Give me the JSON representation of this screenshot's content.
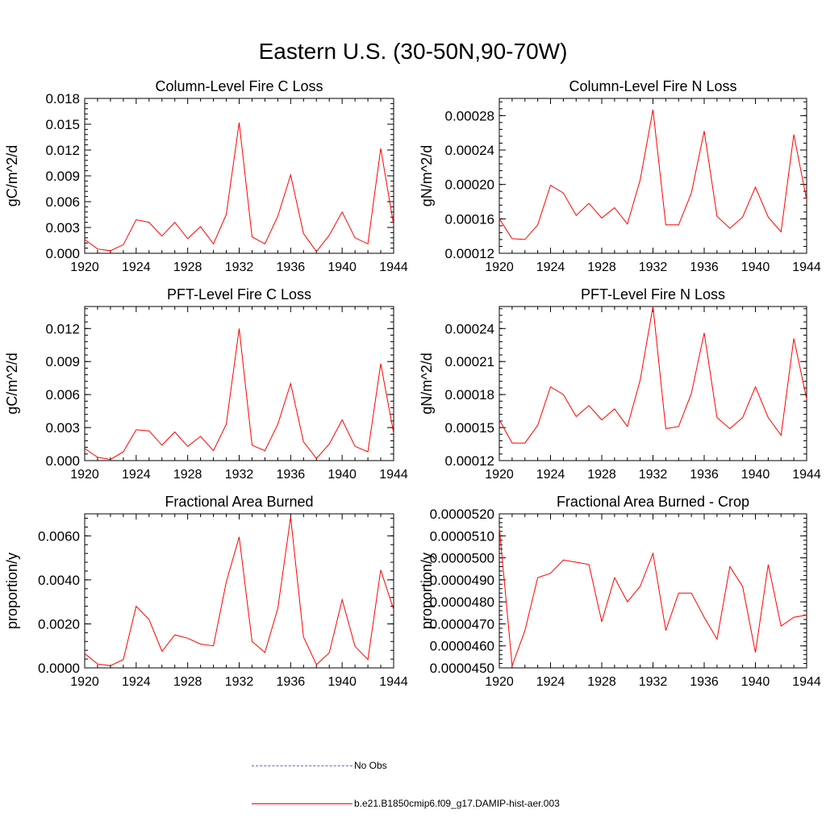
{
  "page_title": "Eastern U.S. (30-50N,90-70W)",
  "chart_data": [
    {
      "type": "line",
      "title": "Column-Level Fire C Loss",
      "ylabel": "gC/m^2/d",
      "xlim": [
        1920,
        1944
      ],
      "ylim": [
        0,
        0.018
      ],
      "xticks": [
        "1920",
        "1924",
        "1928",
        "1932",
        "1936",
        "1940",
        "1944"
      ],
      "yticks": [
        "0.000",
        "0.003",
        "0.006",
        "0.009",
        "0.012",
        "0.015",
        "0.018"
      ],
      "series": [
        {
          "name": "b.e21.B1850cmip6.f09_g17.DAMIP-hist-aer.003",
          "color": "#ff0000",
          "x": [
            1920,
            1921,
            1922,
            1923,
            1924,
            1925,
            1926,
            1927,
            1928,
            1929,
            1930,
            1931,
            1932,
            1933,
            1934,
            1935,
            1936,
            1937,
            1938,
            1939,
            1940,
            1941,
            1942,
            1943,
            1944
          ],
          "y": [
            0.0016,
            0.0005,
            0.0003,
            0.001,
            0.0039,
            0.0036,
            0.002,
            0.0036,
            0.0017,
            0.0031,
            0.0011,
            0.0045,
            0.0152,
            0.0019,
            0.0011,
            0.0043,
            0.0091,
            0.0023,
            0.0002,
            0.0021,
            0.0048,
            0.0018,
            0.0011,
            0.0122,
            0.0033
          ]
        }
      ]
    },
    {
      "type": "line",
      "title": "Column-Level Fire N Loss",
      "ylabel": "gN/m^2/d",
      "xlim": [
        1920,
        1944
      ],
      "ylim": [
        0.00012,
        0.0003
      ],
      "xticks": [
        "1920",
        "1924",
        "1928",
        "1932",
        "1936",
        "1940",
        "1944"
      ],
      "yticks": [
        "0.00012",
        "0.00016",
        "0.00020",
        "0.00024",
        "0.00028"
      ],
      "series": [
        {
          "name": "b.e21.B1850cmip6.f09_g17.DAMIP-hist-aer.003",
          "color": "#ff0000",
          "x": [
            1920,
            1921,
            1922,
            1923,
            1924,
            1925,
            1926,
            1927,
            1928,
            1929,
            1930,
            1931,
            1932,
            1933,
            1934,
            1935,
            1936,
            1937,
            1938,
            1939,
            1940,
            1941,
            1942,
            1943,
            1944
          ],
          "y": [
            0.00016,
            0.000137,
            0.000136,
            0.000153,
            0.000199,
            0.00019,
            0.000164,
            0.000178,
            0.000161,
            0.000173,
            0.000154,
            0.000205,
            0.000287,
            0.000153,
            0.000153,
            0.00019,
            0.000262,
            0.000163,
            0.000149,
            0.000162,
            0.000197,
            0.000162,
            0.000145,
            0.000258,
            0.000182
          ]
        }
      ]
    },
    {
      "type": "line",
      "title": "PFT-Level Fire C Loss",
      "ylabel": "gC/m^2/d",
      "xlim": [
        1920,
        1944
      ],
      "ylim": [
        0,
        0.014
      ],
      "xticks": [
        "1920",
        "1924",
        "1928",
        "1932",
        "1936",
        "1940",
        "1944"
      ],
      "yticks": [
        "0.000",
        "0.003",
        "0.006",
        "0.009",
        "0.012"
      ],
      "series": [
        {
          "name": "b.e21.B1850cmip6.f09_g17.DAMIP-hist-aer.003",
          "color": "#ff0000",
          "x": [
            1920,
            1921,
            1922,
            1923,
            1924,
            1925,
            1926,
            1927,
            1928,
            1929,
            1930,
            1931,
            1932,
            1933,
            1934,
            1935,
            1936,
            1937,
            1938,
            1939,
            1940,
            1941,
            1942,
            1943,
            1944
          ],
          "y": [
            0.0011,
            0.0003,
            0.0001,
            0.0008,
            0.0028,
            0.0027,
            0.0014,
            0.0026,
            0.0013,
            0.0022,
            0.0009,
            0.0033,
            0.012,
            0.0014,
            0.0009,
            0.0033,
            0.007,
            0.0017,
            0.0002,
            0.0015,
            0.0037,
            0.0013,
            0.0008,
            0.0088,
            0.0025
          ]
        }
      ]
    },
    {
      "type": "line",
      "title": "PFT-Level Fire N Loss",
      "ylabel": "gN/m^2/d",
      "xlim": [
        1920,
        1944
      ],
      "ylim": [
        0.00012,
        0.00026
      ],
      "xticks": [
        "1920",
        "1924",
        "1928",
        "1932",
        "1936",
        "1940",
        "1944"
      ],
      "yticks": [
        "0.00012",
        "0.00015",
        "0.00018",
        "0.00021",
        "0.00024"
      ],
      "series": [
        {
          "name": "b.e21.B1850cmip6.f09_g17.DAMIP-hist-aer.003",
          "color": "#ff0000",
          "x": [
            1920,
            1921,
            1922,
            1923,
            1924,
            1925,
            1926,
            1927,
            1928,
            1929,
            1930,
            1931,
            1932,
            1933,
            1934,
            1935,
            1936,
            1937,
            1938,
            1939,
            1940,
            1941,
            1942,
            1943,
            1944
          ],
          "y": [
            0.000157,
            0.000136,
            0.000136,
            0.000152,
            0.000187,
            0.00018,
            0.00016,
            0.00017,
            0.000157,
            0.000167,
            0.000151,
            0.000193,
            0.00026,
            0.000149,
            0.000151,
            0.000181,
            0.000236,
            0.000159,
            0.000149,
            0.000159,
            0.000187,
            0.000159,
            0.000143,
            0.000231,
            0.000176
          ]
        }
      ]
    },
    {
      "type": "line",
      "title": "Fractional Area Burned",
      "ylabel": "proportion/y",
      "xlim": [
        1920,
        1944
      ],
      "ylim": [
        0,
        0.007
      ],
      "xticks": [
        "1920",
        "1924",
        "1928",
        "1932",
        "1936",
        "1940",
        "1944"
      ],
      "yticks": [
        "0.0000",
        "0.0020",
        "0.0040",
        "0.0060"
      ],
      "series": [
        {
          "name": "b.e21.B1850cmip6.f09_g17.DAMIP-hist-aer.003",
          "color": "#ff0000",
          "x": [
            1920,
            1921,
            1922,
            1923,
            1924,
            1925,
            1926,
            1927,
            1928,
            1929,
            1930,
            1931,
            1932,
            1933,
            1934,
            1935,
            1936,
            1937,
            1938,
            1939,
            1940,
            1941,
            1942,
            1943,
            1944
          ],
          "y": [
            0.00065,
            0.00018,
            0.0001,
            0.00038,
            0.0028,
            0.0022,
            0.00075,
            0.0015,
            0.00135,
            0.00108,
            0.001,
            0.0039,
            0.00595,
            0.0012,
            0.0007,
            0.0027,
            0.00685,
            0.0014,
            0.00015,
            0.00068,
            0.0031,
            0.00098,
            0.00038,
            0.00445,
            0.00265
          ]
        }
      ]
    },
    {
      "type": "line",
      "title": "Fractional Area Burned - Crop",
      "ylabel": "proportion/y",
      "xlim": [
        1920,
        1944
      ],
      "ylim": [
        4.5e-05,
        5.2e-05
      ],
      "xticks": [
        "1920",
        "1924",
        "1928",
        "1932",
        "1936",
        "1940",
        "1944"
      ],
      "yticks": [
        "0.0000450",
        "0.0000460",
        "0.0000470",
        "0.0000480",
        "0.0000490",
        "0.0000500",
        "0.0000510",
        "0.0000520"
      ],
      "series": [
        {
          "name": "b.e21.B1850cmip6.f09_g17.DAMIP-hist-aer.003",
          "color": "#ff0000",
          "x": [
            1920,
            1921,
            1922,
            1923,
            1924,
            1925,
            1926,
            1927,
            1928,
            1929,
            1930,
            1931,
            1932,
            1933,
            1934,
            1935,
            1936,
            1937,
            1938,
            1939,
            1940,
            1941,
            1942,
            1943,
            1944
          ],
          "y": [
            5.14e-05,
            4.51e-05,
            4.67e-05,
            4.91e-05,
            4.93e-05,
            4.99e-05,
            4.98e-05,
            4.97e-05,
            4.71e-05,
            4.91e-05,
            4.8e-05,
            4.87e-05,
            5.02e-05,
            4.67e-05,
            4.84e-05,
            4.84e-05,
            4.73e-05,
            4.63e-05,
            4.96e-05,
            4.87e-05,
            4.57e-05,
            4.97e-05,
            4.69e-05,
            4.73e-05,
            4.74e-05
          ]
        }
      ]
    }
  ],
  "legend": {
    "items": [
      {
        "label": "No Obs",
        "color": "#6a6aa8",
        "style": "dashed"
      },
      {
        "label": "b.e21.B1850cmip6.f09_g17.DAMIP-hist-aer.003",
        "color": "#ff0000",
        "style": "solid"
      }
    ]
  }
}
